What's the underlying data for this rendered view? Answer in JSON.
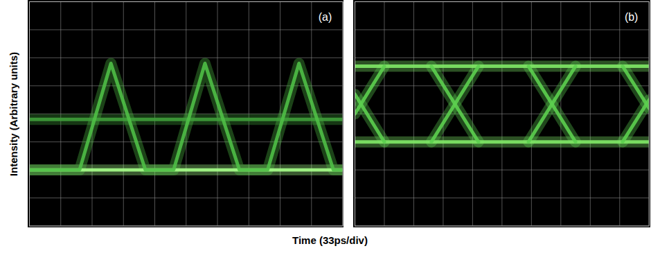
{
  "chart_data": [
    {
      "type": "line",
      "label": "(a)",
      "ylabel": "Intensity (Arbitrary units)",
      "xlabel": "Time (33ps/div)",
      "xlim": [
        0,
        10
      ],
      "ylim": [
        0,
        8
      ],
      "xticks": [
        0,
        1,
        2,
        3,
        4,
        5,
        6,
        7,
        8,
        9,
        10
      ],
      "yticks": [
        0,
        1,
        2,
        3,
        4,
        5,
        6,
        7,
        8
      ],
      "grid": true,
      "tick_labels": false,
      "series": [
        {
          "color": "#a6ff8a",
          "x": [
            0,
            10
          ],
          "values": [
            2.0,
            2.0
          ]
        },
        {
          "color": "#3f9e3a",
          "x": [
            0,
            10
          ],
          "values": [
            3.8,
            3.8
          ]
        },
        {
          "color": "#4fbf46",
          "x": [
            0,
            1.6,
            2.6,
            3.7,
            4.6,
            5.6,
            6.7,
            7.6,
            8.6,
            9.7,
            10
          ],
          "values": [
            2.0,
            2.0,
            5.8,
            2.0,
            2.0,
            5.8,
            2.0,
            2.0,
            5.8,
            2.0,
            2.0
          ]
        }
      ]
    },
    {
      "type": "line",
      "label": "(b)",
      "xlim": [
        0,
        10
      ],
      "ylim": [
        0,
        8
      ],
      "xticks": [
        0,
        1,
        2,
        3,
        4,
        5,
        6,
        7,
        8,
        9,
        10
      ],
      "yticks": [
        0,
        1,
        2,
        3,
        4,
        5,
        6,
        7,
        8
      ],
      "grid": true,
      "tick_labels": false,
      "series": [
        {
          "color": "#7fe866",
          "x": [
            0,
            10
          ],
          "values": [
            5.7,
            5.7
          ]
        },
        {
          "color": "#7fe866",
          "x": [
            0,
            10
          ],
          "values": [
            3.0,
            3.0
          ]
        },
        {
          "color": "#5ccf4f",
          "x": [
            0,
            1.0,
            1.8,
            2.6,
            4.2,
            5.0,
            5.9,
            7.5,
            8.3,
            9.1,
            10
          ],
          "values": [
            4.0,
            5.7,
            null,
            3.0,
            5.7,
            null,
            3.0,
            5.7,
            null,
            3.0,
            4.5
          ]
        },
        {
          "color": "#5ccf4f",
          "x": [
            0,
            1.0,
            1.8,
            2.6,
            4.2,
            5.0,
            5.9,
            7.5,
            8.3,
            9.1,
            10
          ],
          "values": [
            4.7,
            3.0,
            null,
            5.7,
            3.0,
            null,
            5.7,
            3.0,
            null,
            5.7,
            4.2
          ]
        }
      ]
    }
  ]
}
